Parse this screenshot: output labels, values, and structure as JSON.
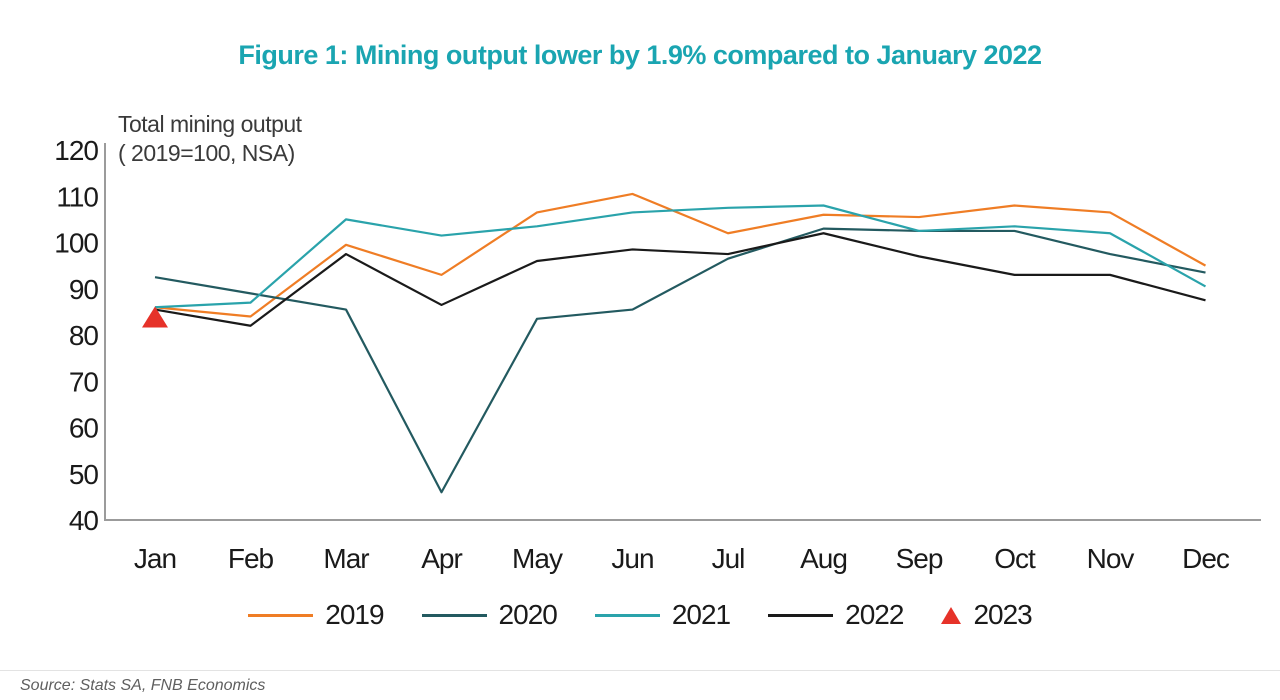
{
  "title": "Figure 1: Mining output lower by 1.9% compared to January 2022",
  "annotation": {
    "line1": "Total mining output",
    "line2": "( 2019=100, NSA)"
  },
  "source": "Source: Stats SA, FNB Economics",
  "colors": {
    "title_accent": "#1aa5b1",
    "axis_line": "#9b9b9b",
    "tick_text": "#1a1a1a",
    "annotation_text": "#3a3a3a",
    "source_text": "#5f5f5f"
  },
  "chart_data": {
    "type": "line",
    "title": "Total mining output ( 2019=100, NSA)",
    "categories": [
      "Jan",
      "Feb",
      "Mar",
      "Apr",
      "May",
      "Jun",
      "Jul",
      "Aug",
      "Sep",
      "Oct",
      "Nov",
      "Dec"
    ],
    "yticks": [
      120,
      110,
      100,
      90,
      80,
      70,
      60,
      50,
      40
    ],
    "ylim": [
      40,
      120
    ],
    "grid": false,
    "legend_position": "bottom",
    "series": [
      {
        "name": "2019",
        "color": "#ef7d25",
        "marker": "line",
        "values": [
          86,
          84,
          99.5,
          93,
          106.5,
          110.5,
          102,
          106,
          105.5,
          108,
          106.5,
          95
        ]
      },
      {
        "name": "2020",
        "color": "#235a60",
        "marker": "line",
        "values": [
          92.5,
          89,
          85.5,
          46,
          83.5,
          85.5,
          96.5,
          103,
          102.5,
          102.5,
          97.5,
          93.5
        ]
      },
      {
        "name": "2021",
        "color": "#2aa3ab",
        "marker": "line",
        "values": [
          86,
          87,
          105,
          101.5,
          103.5,
          106.5,
          107.5,
          108,
          102.5,
          103.5,
          102,
          90.5
        ]
      },
      {
        "name": "2022",
        "color": "#1a1a1a",
        "marker": "line",
        "values": [
          85.5,
          82,
          97.5,
          86.5,
          96,
          98.5,
          97.5,
          102,
          97,
          93,
          93,
          87.5
        ]
      },
      {
        "name": "2023",
        "color": "#e63229",
        "marker": "triangle",
        "values": [
          83.9,
          null,
          null,
          null,
          null,
          null,
          null,
          null,
          null,
          null,
          null,
          null
        ]
      }
    ]
  }
}
